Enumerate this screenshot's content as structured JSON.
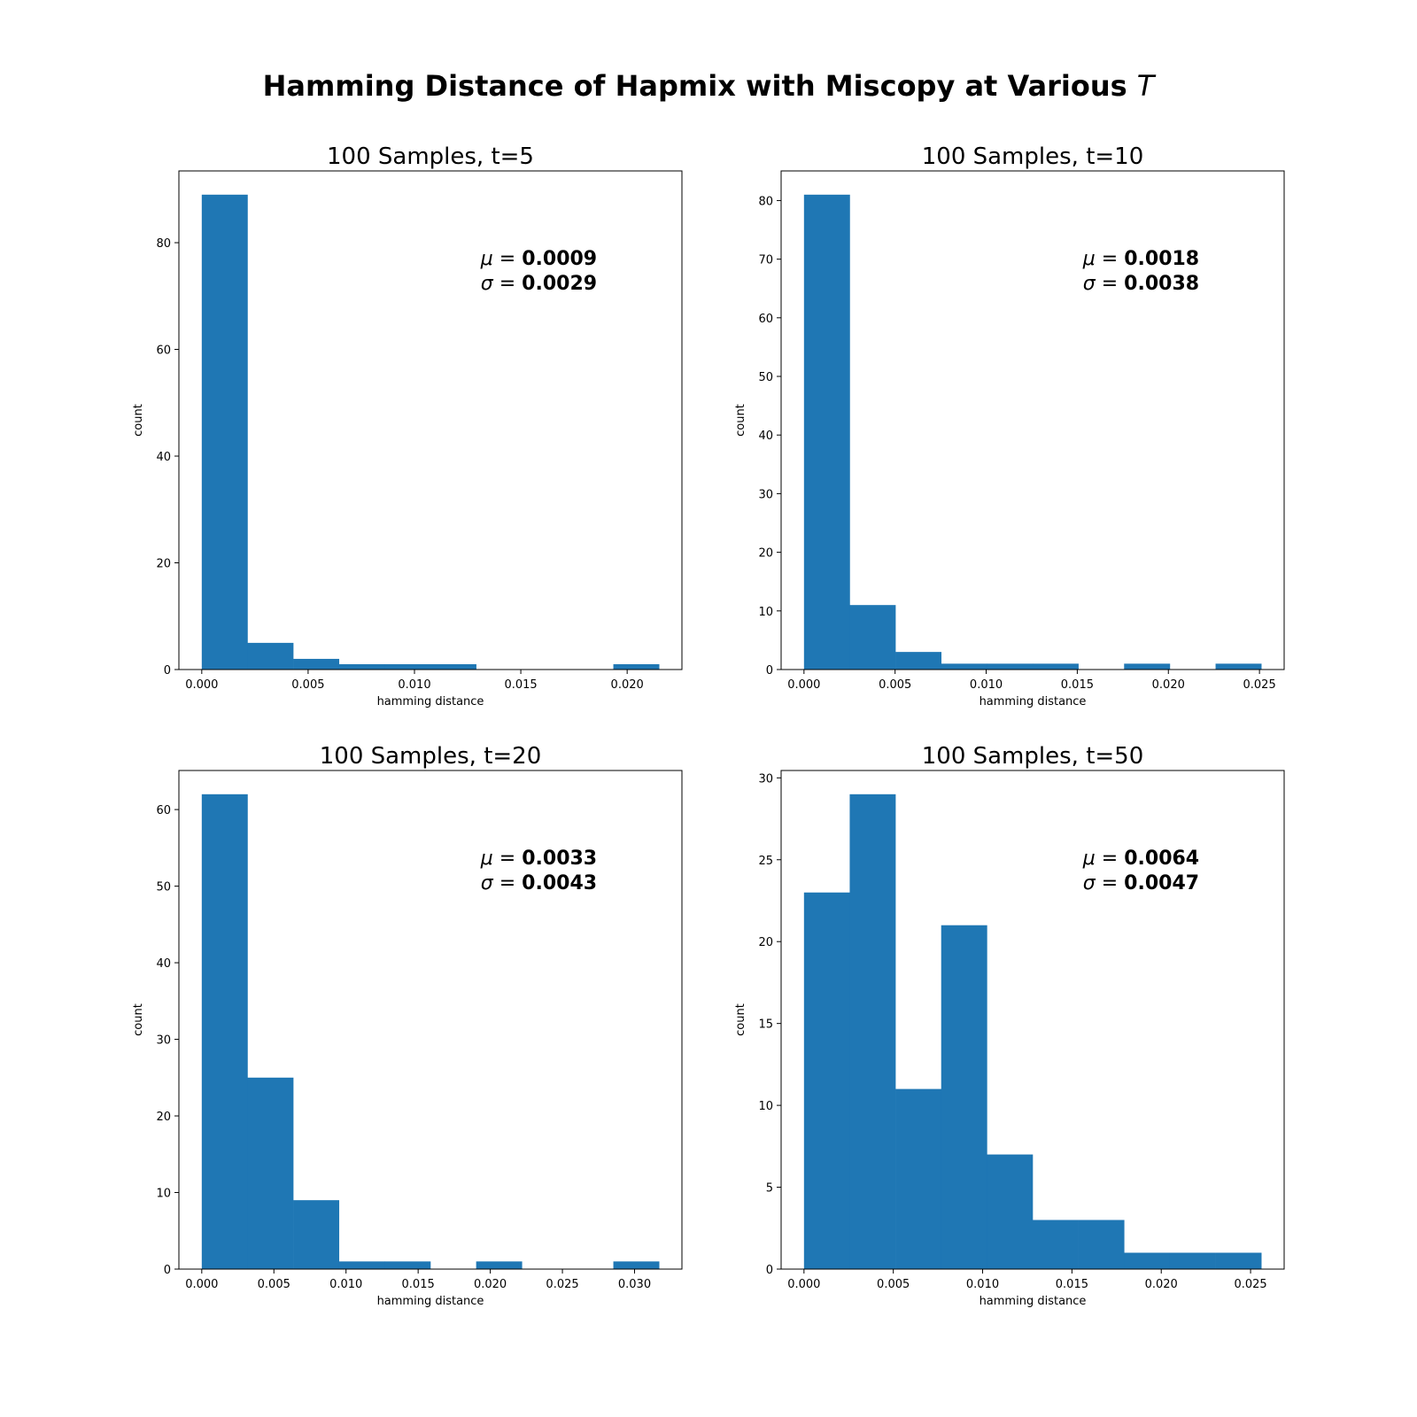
{
  "figure": {
    "title": "Hamming Distance of Hapmix with Miscopy at Various",
    "title_symbol": "T"
  },
  "chart_data": [
    {
      "type": "bar",
      "title": "100 Samples, t=5",
      "xlabel": "hamming distance",
      "ylabel": "count",
      "color": "#1f77b4",
      "bins": [
        {
          "x0": 0.0,
          "x1": 0.00215,
          "count": 89
        },
        {
          "x0": 0.00215,
          "x1": 0.0043,
          "count": 5
        },
        {
          "x0": 0.0043,
          "x1": 0.00645,
          "count": 2
        },
        {
          "x0": 0.00645,
          "x1": 0.0086,
          "count": 1
        },
        {
          "x0": 0.0086,
          "x1": 0.01075,
          "count": 1
        },
        {
          "x0": 0.01075,
          "x1": 0.0129,
          "count": 1
        },
        {
          "x0": 0.0129,
          "x1": 0.01505,
          "count": 0
        },
        {
          "x0": 0.01505,
          "x1": 0.0172,
          "count": 0
        },
        {
          "x0": 0.0172,
          "x1": 0.01935,
          "count": 0
        },
        {
          "x0": 0.01935,
          "x1": 0.0215,
          "count": 1
        }
      ],
      "xlim": [
        -0.001075,
        0.022575
      ],
      "ylim": [
        0,
        93.45
      ],
      "xticks": [
        0,
        0.005,
        0.01,
        0.015,
        0.02
      ],
      "xtick_labels": [
        "0.000",
        "0.005",
        "0.010",
        "0.015",
        "0.020"
      ],
      "yticks": [
        0,
        20,
        40,
        60,
        80
      ],
      "ytick_labels": [
        "0",
        "20",
        "40",
        "60",
        "80"
      ],
      "stats": {
        "mu": "0.0009",
        "sigma": "0.0029"
      }
    },
    {
      "type": "bar",
      "title": "100 Samples, t=10",
      "xlabel": "hamming distance",
      "ylabel": "count",
      "color": "#1f77b4",
      "bins": [
        {
          "x0": 0.0,
          "x1": 0.00251,
          "count": 81
        },
        {
          "x0": 0.00251,
          "x1": 0.00502,
          "count": 11
        },
        {
          "x0": 0.00502,
          "x1": 0.00753,
          "count": 3
        },
        {
          "x0": 0.00753,
          "x1": 0.01004,
          "count": 1
        },
        {
          "x0": 0.01004,
          "x1": 0.01255,
          "count": 1
        },
        {
          "x0": 0.01255,
          "x1": 0.01506,
          "count": 1
        },
        {
          "x0": 0.01506,
          "x1": 0.01757,
          "count": 0
        },
        {
          "x0": 0.01757,
          "x1": 0.02008,
          "count": 1
        },
        {
          "x0": 0.02008,
          "x1": 0.02259,
          "count": 0
        },
        {
          "x0": 0.02259,
          "x1": 0.0251,
          "count": 1
        }
      ],
      "xlim": [
        -0.001255,
        0.026355
      ],
      "ylim": [
        0,
        85.05
      ],
      "xticks": [
        0,
        0.005,
        0.01,
        0.015,
        0.02,
        0.025
      ],
      "xtick_labels": [
        "0.000",
        "0.005",
        "0.010",
        "0.015",
        "0.020",
        "0.025"
      ],
      "yticks": [
        0,
        10,
        20,
        30,
        40,
        50,
        60,
        70,
        80
      ],
      "ytick_labels": [
        "0",
        "10",
        "20",
        "30",
        "40",
        "50",
        "60",
        "70",
        "80"
      ],
      "stats": {
        "mu": "0.0018",
        "sigma": "0.0038"
      }
    },
    {
      "type": "bar",
      "title": "100 Samples, t=20",
      "xlabel": "hamming distance",
      "ylabel": "count",
      "color": "#1f77b4",
      "bins": [
        {
          "x0": 0.0,
          "x1": 0.00317,
          "count": 62
        },
        {
          "x0": 0.00317,
          "x1": 0.00634,
          "count": 25
        },
        {
          "x0": 0.00634,
          "x1": 0.00951,
          "count": 9
        },
        {
          "x0": 0.00951,
          "x1": 0.01268,
          "count": 1
        },
        {
          "x0": 0.01268,
          "x1": 0.01585,
          "count": 1
        },
        {
          "x0": 0.01585,
          "x1": 0.01902,
          "count": 0
        },
        {
          "x0": 0.01902,
          "x1": 0.02219,
          "count": 1
        },
        {
          "x0": 0.02219,
          "x1": 0.02536,
          "count": 0
        },
        {
          "x0": 0.02536,
          "x1": 0.02853,
          "count": 0
        },
        {
          "x0": 0.02853,
          "x1": 0.0317,
          "count": 1
        }
      ],
      "xlim": [
        -0.001585,
        0.033285
      ],
      "ylim": [
        0,
        65.1
      ],
      "xticks": [
        0,
        0.005,
        0.01,
        0.015,
        0.02,
        0.025,
        0.03
      ],
      "xtick_labels": [
        "0.000",
        "0.005",
        "0.010",
        "0.015",
        "0.020",
        "0.025",
        "0.030"
      ],
      "yticks": [
        0,
        10,
        20,
        30,
        40,
        50,
        60
      ],
      "ytick_labels": [
        "0",
        "10",
        "20",
        "30",
        "40",
        "50",
        "60"
      ],
      "stats": {
        "mu": "0.0033",
        "sigma": "0.0043"
      }
    },
    {
      "type": "bar",
      "title": "100 Samples, t=50",
      "xlabel": "hamming distance",
      "ylabel": "count",
      "color": "#1f77b4",
      "bins": [
        {
          "x0": 0.0,
          "x1": 0.00256,
          "count": 23
        },
        {
          "x0": 0.00256,
          "x1": 0.00512,
          "count": 29
        },
        {
          "x0": 0.00512,
          "x1": 0.00768,
          "count": 11
        },
        {
          "x0": 0.00768,
          "x1": 0.01024,
          "count": 21
        },
        {
          "x0": 0.01024,
          "x1": 0.0128,
          "count": 7
        },
        {
          "x0": 0.0128,
          "x1": 0.01536,
          "count": 3
        },
        {
          "x0": 0.01536,
          "x1": 0.01792,
          "count": 3
        },
        {
          "x0": 0.01792,
          "x1": 0.02048,
          "count": 1
        },
        {
          "x0": 0.02048,
          "x1": 0.02304,
          "count": 1
        },
        {
          "x0": 0.02304,
          "x1": 0.0256,
          "count": 1
        }
      ],
      "xlim": [
        -0.00128,
        0.02688
      ],
      "ylim": [
        0,
        30.45
      ],
      "xticks": [
        0,
        0.005,
        0.01,
        0.015,
        0.02,
        0.025
      ],
      "xtick_labels": [
        "0.000",
        "0.005",
        "0.010",
        "0.015",
        "0.020",
        "0.025"
      ],
      "yticks": [
        0,
        5,
        10,
        15,
        20,
        25,
        30
      ],
      "ytick_labels": [
        "0",
        "5",
        "10",
        "15",
        "20",
        "25",
        "30"
      ],
      "stats": {
        "mu": "0.0064",
        "sigma": "0.0047"
      }
    }
  ]
}
